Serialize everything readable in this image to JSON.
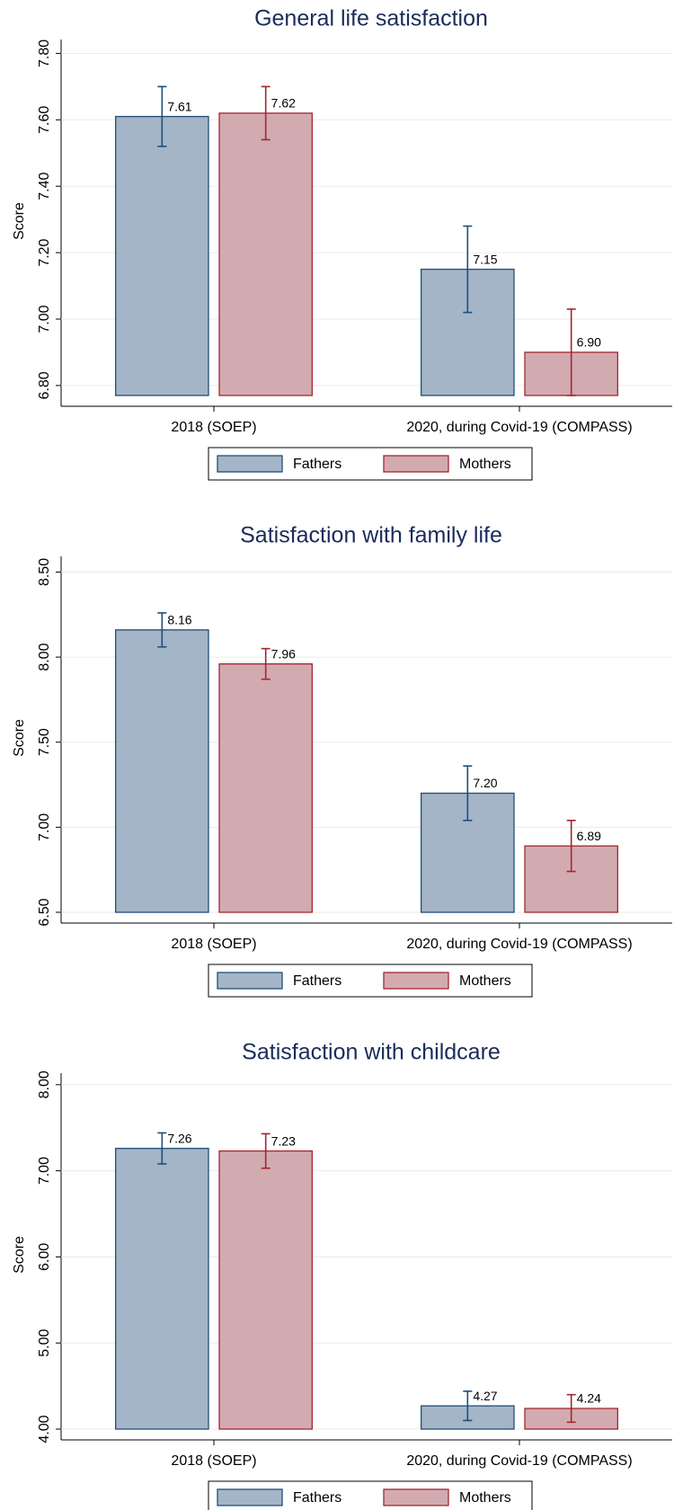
{
  "chart_data": [
    {
      "type": "bar",
      "title": "General life satisfaction",
      "y_label": "Score",
      "categories": [
        "2018 (SOEP)",
        "2020, during Covid-19 (COMPASS)"
      ],
      "series": [
        {
          "name": "Fathers",
          "color": "#a4b5c7",
          "edge": "#1f4e79",
          "values": [
            7.61,
            7.15
          ],
          "value_labels": [
            "7.61",
            "7.15"
          ],
          "errors": [
            0.09,
            0.13
          ]
        },
        {
          "name": "Mothers",
          "color": "#d2abb1",
          "edge": "#a3262f",
          "values": [
            7.62,
            6.9
          ],
          "value_labels": [
            "7.62",
            "6.90"
          ],
          "errors": [
            0.08,
            0.13
          ]
        }
      ],
      "ylim": [
        6.77,
        7.82
      ],
      "yticks": [
        {
          "value": 6.8,
          "label": "6.80"
        },
        {
          "value": 7.0,
          "label": "7.00"
        },
        {
          "value": 7.2,
          "label": "7.20"
        },
        {
          "value": 7.4,
          "label": "7.40"
        },
        {
          "value": 7.6,
          "label": "7.60"
        },
        {
          "value": 7.8,
          "label": "7.80"
        }
      ],
      "grid": true
    },
    {
      "type": "bar",
      "title": "Satisfaction with family life",
      "y_label": "Score",
      "categories": [
        "2018 (SOEP)",
        "2020, during Covid-19 (COMPASS)"
      ],
      "series": [
        {
          "name": "Fathers",
          "color": "#a4b5c7",
          "edge": "#1f4e79",
          "values": [
            8.16,
            7.2
          ],
          "value_labels": [
            "8.16",
            "7.20"
          ],
          "errors": [
            0.1,
            0.16
          ]
        },
        {
          "name": "Mothers",
          "color": "#d2abb1",
          "edge": "#a3262f",
          "values": [
            7.96,
            6.89
          ],
          "value_labels": [
            "7.96",
            "6.89"
          ],
          "errors": [
            0.09,
            0.15
          ]
        }
      ],
      "ylim": [
        6.5,
        8.55
      ],
      "yticks": [
        {
          "value": 6.5,
          "label": "6.50"
        },
        {
          "value": 7.0,
          "label": "7.00"
        },
        {
          "value": 7.5,
          "label": "7.50"
        },
        {
          "value": 8.0,
          "label": "8.00"
        },
        {
          "value": 8.5,
          "label": "8.50"
        }
      ],
      "grid": true
    },
    {
      "type": "bar",
      "title": "Satisfaction with childcare",
      "y_label": "Score",
      "categories": [
        "2018 (SOEP)",
        "2020, during Covid-19 (COMPASS)"
      ],
      "series": [
        {
          "name": "Fathers",
          "color": "#a4b5c7",
          "edge": "#1f4e79",
          "values": [
            7.26,
            4.27
          ],
          "value_labels": [
            "7.26",
            "4.27"
          ],
          "errors": [
            0.18,
            0.17
          ]
        },
        {
          "name": "Mothers",
          "color": "#d2abb1",
          "edge": "#a3262f",
          "values": [
            7.23,
            4.24
          ],
          "value_labels": [
            "7.23",
            "4.24"
          ],
          "errors": [
            0.2,
            0.16
          ]
        }
      ],
      "ylim": [
        4.0,
        8.05
      ],
      "yticks": [
        {
          "value": 4.0,
          "label": "4.00"
        },
        {
          "value": 5.0,
          "label": "5.00"
        },
        {
          "value": 6.0,
          "label": "6.00"
        },
        {
          "value": 7.0,
          "label": "7.00"
        },
        {
          "value": 8.0,
          "label": "8.00"
        }
      ],
      "grid": true
    }
  ]
}
